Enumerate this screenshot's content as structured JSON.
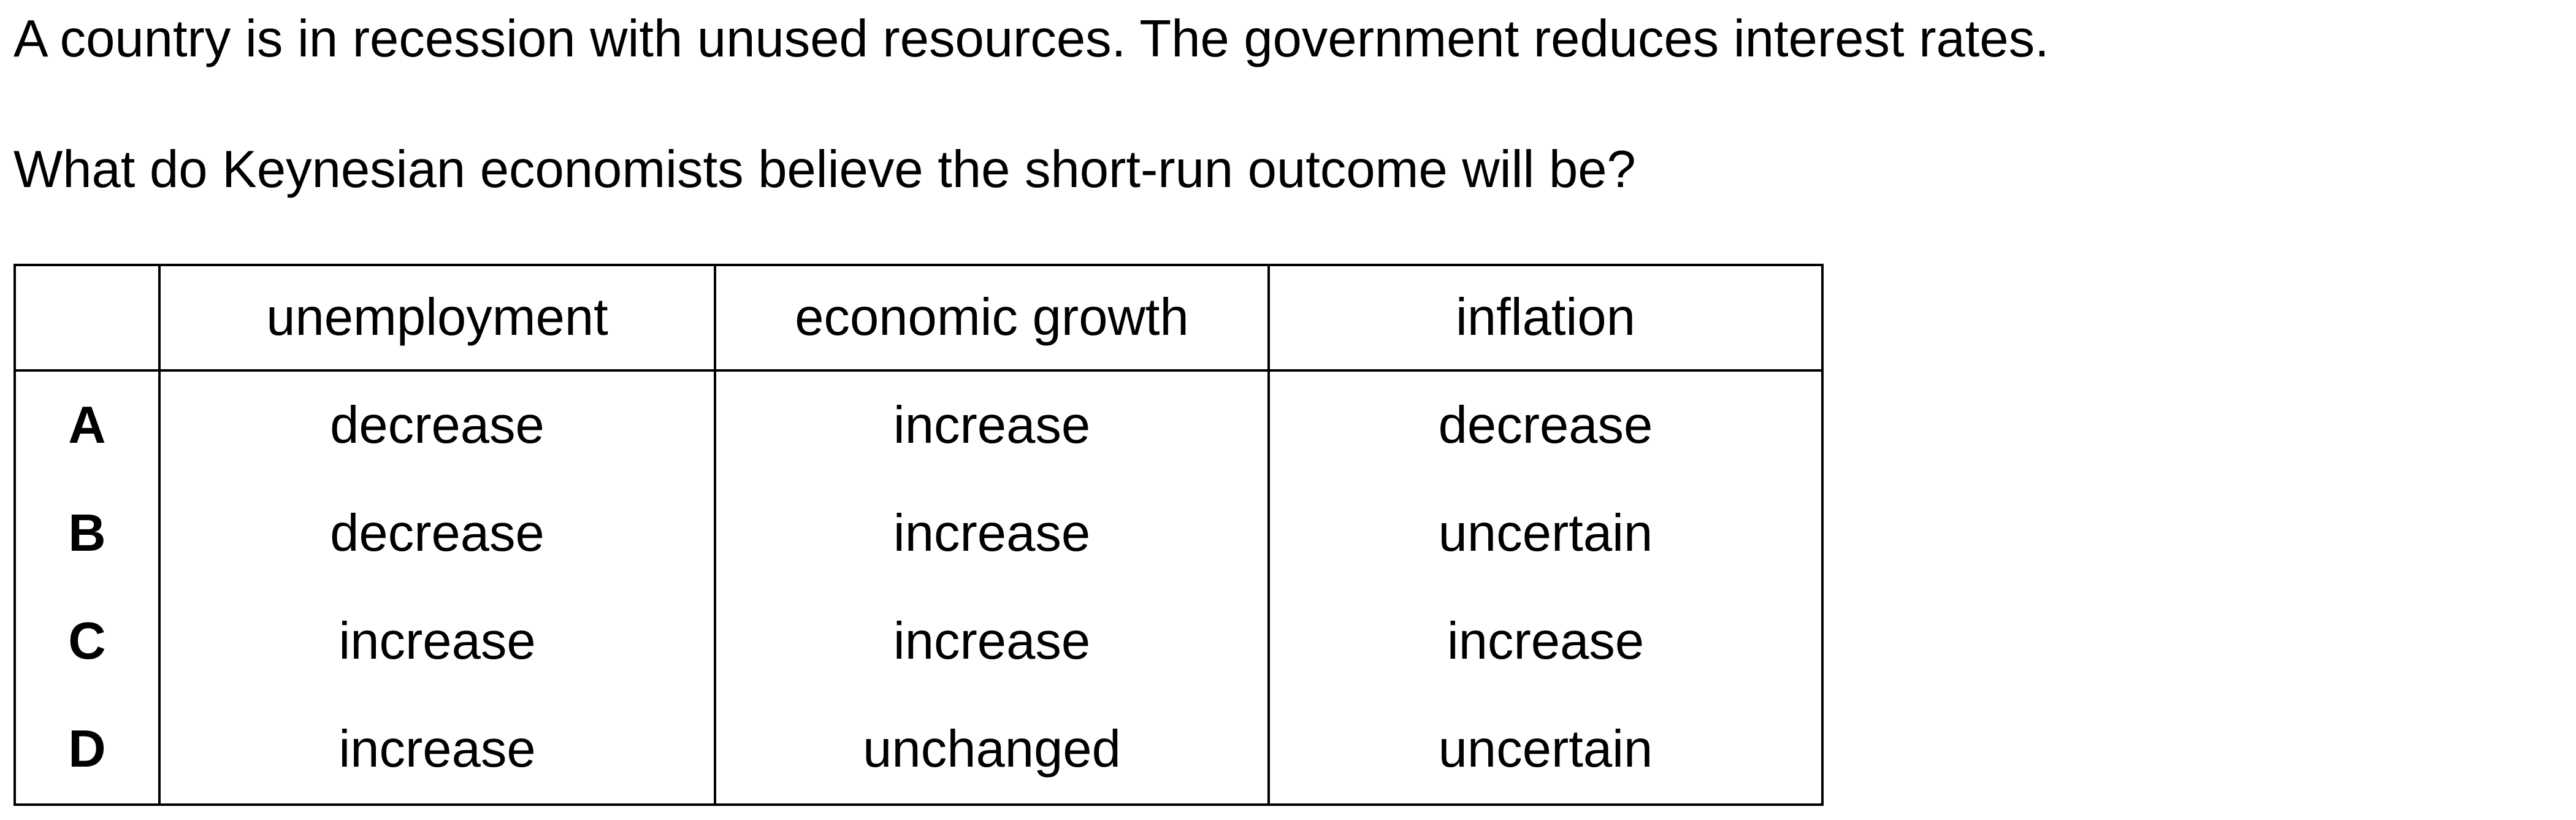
{
  "question": {
    "stem": "A country is in recession with unused resources. The government reduces interest rates.",
    "prompt": "What do Keynesian economists believe the short-run outcome will be?"
  },
  "table": {
    "headers": [
      "",
      "unemployment",
      "economic growth",
      "inflation"
    ],
    "rows": [
      {
        "key": "A",
        "unemployment": "decrease",
        "growth": "increase",
        "inflation": "decrease"
      },
      {
        "key": "B",
        "unemployment": "decrease",
        "growth": "increase",
        "inflation": "uncertain"
      },
      {
        "key": "C",
        "unemployment": "increase",
        "growth": "increase",
        "inflation": "increase"
      },
      {
        "key": "D",
        "unemployment": "increase",
        "growth": "unchanged",
        "inflation": "uncertain"
      }
    ]
  }
}
